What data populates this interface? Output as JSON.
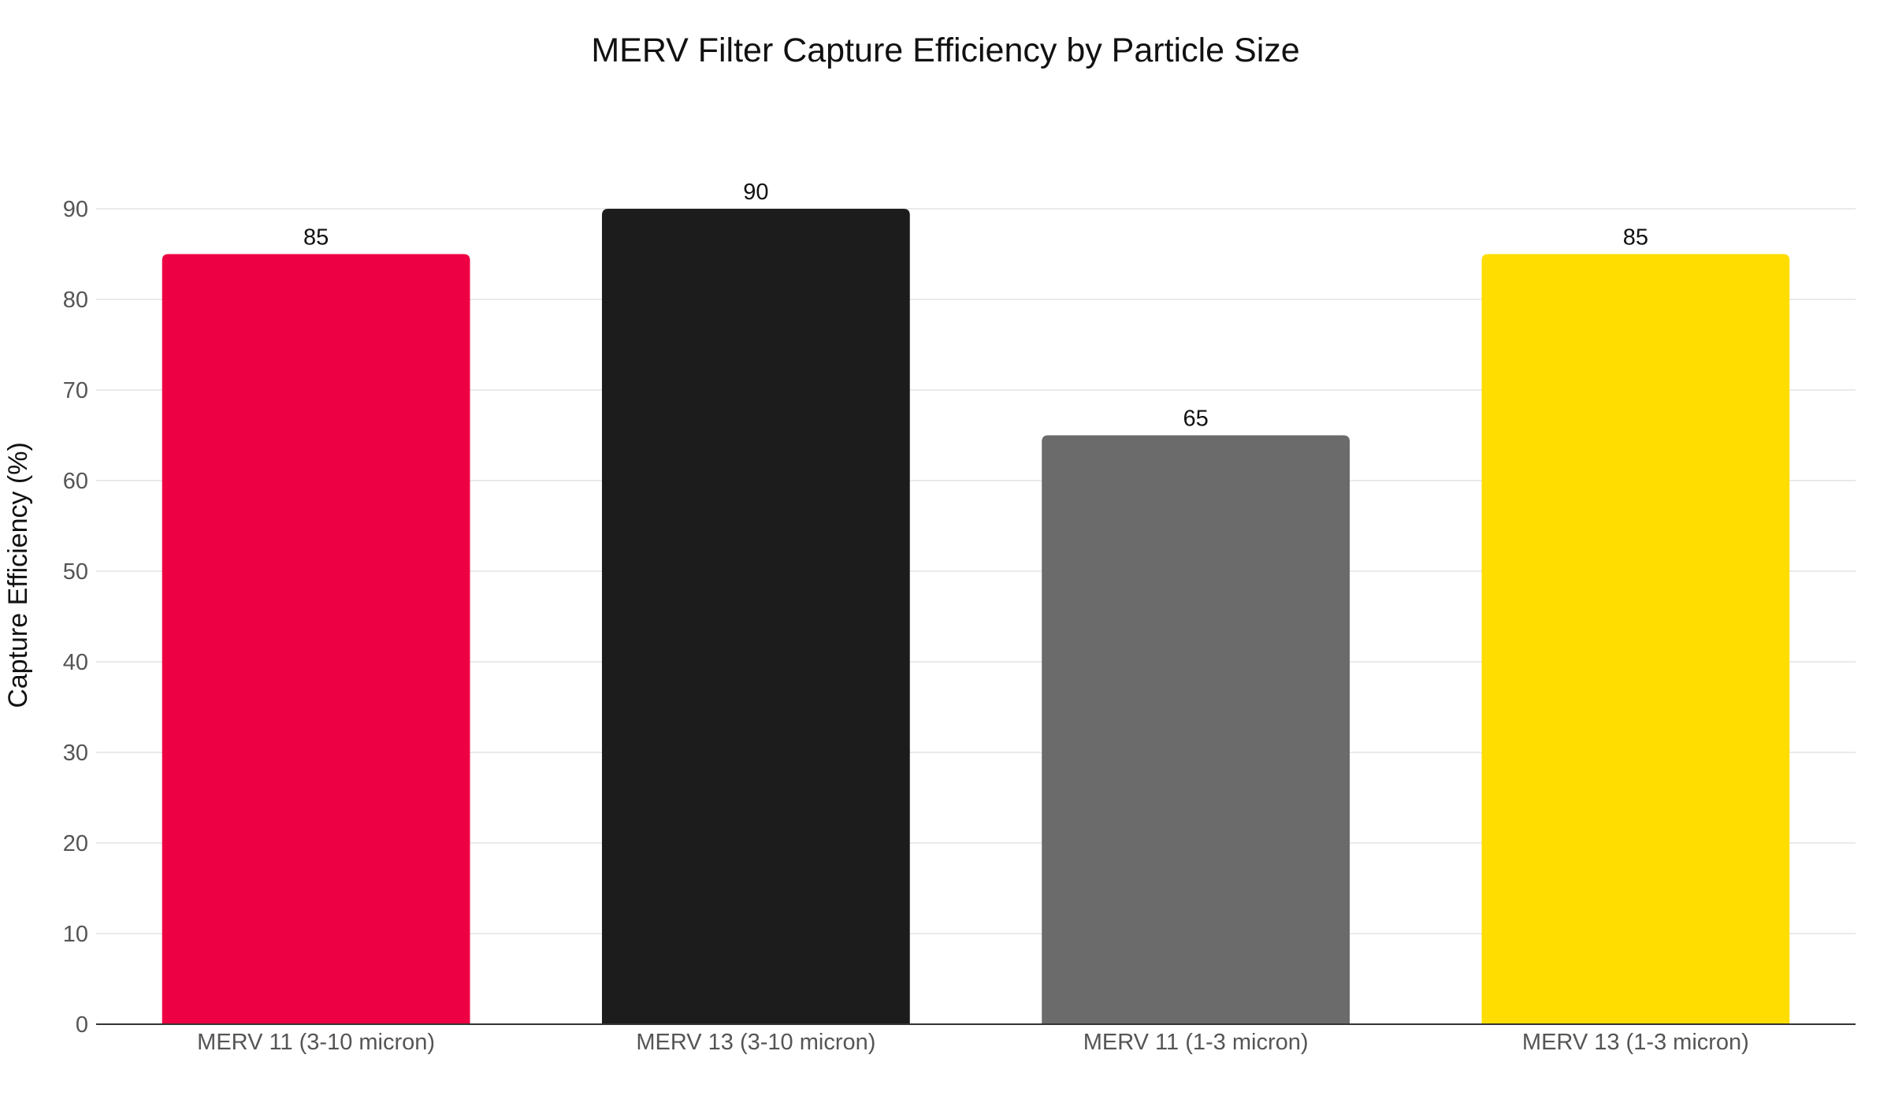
{
  "chart_data": {
    "type": "bar",
    "title": "MERV Filter Capture Efficiency by Particle Size",
    "ylabel": "Capture Efficiency (%)",
    "xlabel": "",
    "categories": [
      "MERV 11 (3-10 micron)",
      "MERV 13 (3-10 micron)",
      "MERV 11 (1-3 micron)",
      "MERV 13 (1-3 micron)"
    ],
    "values": [
      85,
      90,
      65,
      85
    ],
    "data_labels": [
      "85",
      "90",
      "65",
      "85"
    ],
    "colors": [
      "#ee0044",
      "#1c1c1c",
      "#6b6b6b",
      "#ffdd00"
    ],
    "ylim": [
      0,
      90
    ],
    "yticks": [
      0,
      10,
      20,
      30,
      40,
      50,
      60,
      70,
      80,
      90
    ],
    "ytick_labels": [
      "0",
      "10",
      "20",
      "30",
      "40",
      "50",
      "60",
      "70",
      "80",
      "90"
    ],
    "grid": true,
    "legend": "none"
  }
}
